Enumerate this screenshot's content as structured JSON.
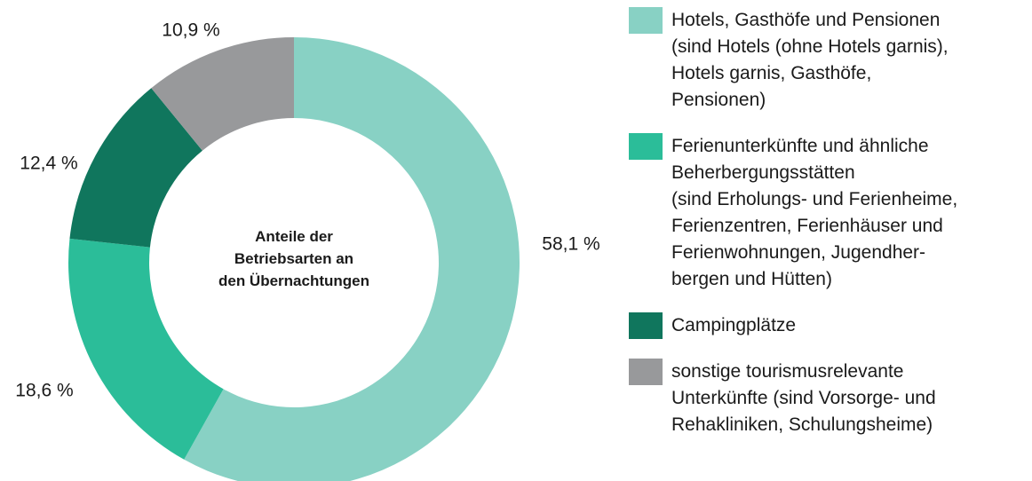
{
  "chart_data": {
    "type": "donut",
    "title": "Anteile der\nBetriebsarten an\nden Übernachtungen",
    "categories": [
      "Hotels, Gasthöfe und Pensionen\n(sind Hotels (ohne Hotels garnis),\nHotels garnis, Gasthöfe,\nPensionen)",
      "Ferienunterkünfte und ähnliche\nBeherbergungsstätten\n(sind Erholungs- und Ferienheime,\nFerienzentren, Ferienhäuser und\nFerienwohnungen, Jugendher-\nbergen und Hütten)",
      "Campingplätze",
      "sonstige tourismusrelevante\nUnterkünfte (sind Vorsorge- und\nRehakliniken, Schulungsheime)"
    ],
    "values": [
      58.1,
      18.6,
      12.4,
      10.9
    ],
    "value_labels": [
      "58,1 %",
      "18,6 %",
      "12,4 %",
      "10,9 %"
    ],
    "colors": [
      "#88d1c4",
      "#2bbd99",
      "#10765d",
      "#98999b"
    ]
  }
}
